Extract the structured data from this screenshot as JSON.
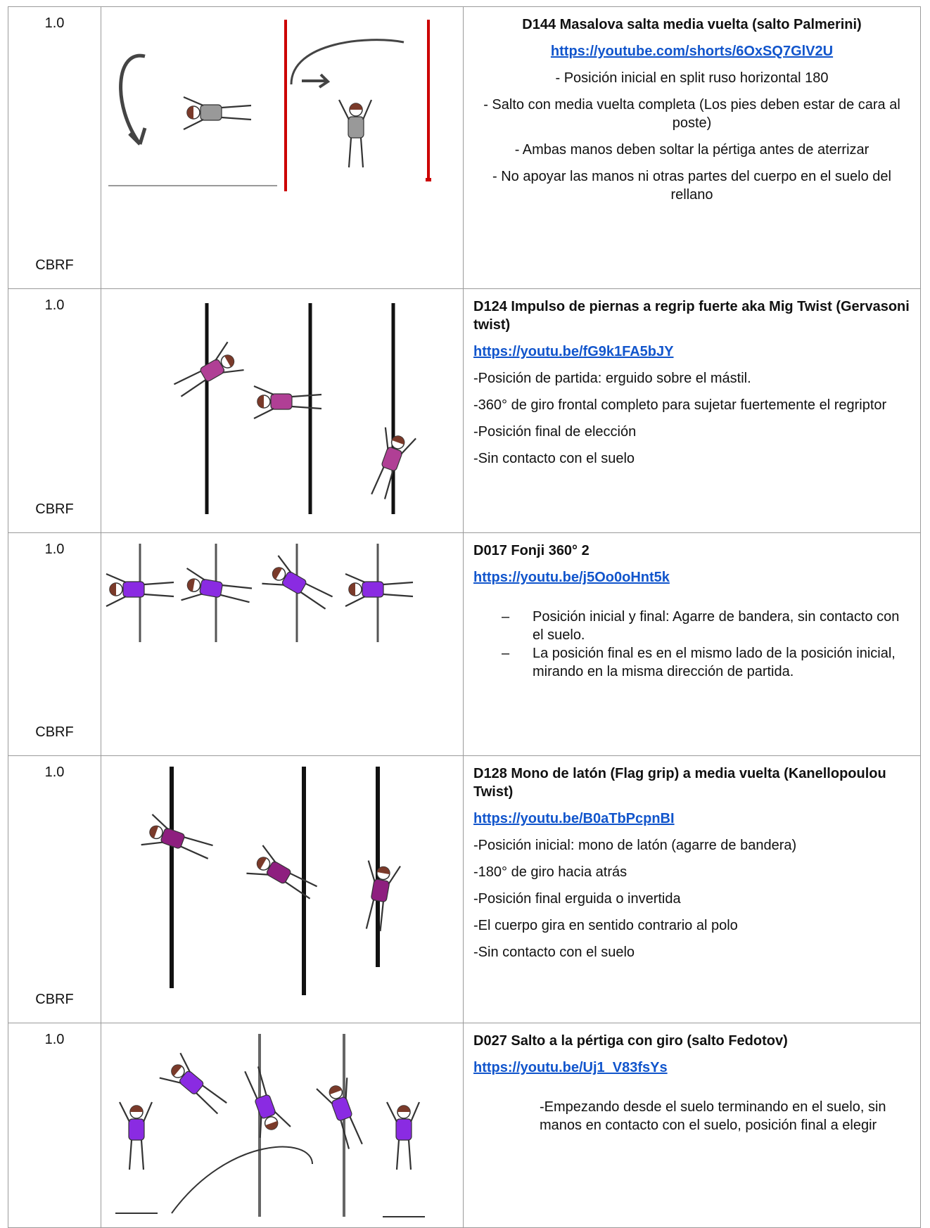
{
  "table": {
    "rows": [
      {
        "score": "1.0",
        "org": "CBRF",
        "title": "D144 Masalova salta media vuelta (salto Palmerini)",
        "link": "https://youtube.com/shorts/6OxSQ7GlV2U",
        "items": [
          "- Posición inicial en split ruso horizontal 180",
          "- Salto con media vuelta completa (Los pies deben estar de cara al poste)",
          "- Ambas manos deben soltar la pértiga antes de aterrizar",
          "- No apoyar las manos ni otras partes del cuerpo en el suelo del rellano"
        ]
      },
      {
        "score": "1.0",
        "org": "CBRF",
        "title": "D124 Impulso de piernas a regrip fuerte aka Mig Twist (Gervasoni twist)",
        "link": "https://youtu.be/fG9k1FA5bJY",
        "items": [
          "-Posición de partida: erguido sobre el mástil.",
          "-360° de giro frontal completo para sujetar fuertemente el regriptor",
          "-Posición final de elección",
          "-Sin contacto con el suelo"
        ]
      },
      {
        "score": "1.0",
        "org": "CBRF",
        "title": "D017 Fonji 360° 2",
        "link": "https://youtu.be/j5Oo0oHnt5k",
        "bullet": "–",
        "items": [
          "Posición inicial y final: Agarre de bandera, sin contacto con el suelo.",
          "La posición final es en el mismo lado de la posición inicial, mirando en la misma dirección de partida."
        ]
      },
      {
        "score": "1.0",
        "org": "CBRF",
        "title": "D128 Mono de latón (Flag grip) a media vuelta (Kanellopoulou Twist)",
        "link": "https://youtu.be/B0aTbPcpnBI",
        "items": [
          "-Posición inicial: mono de latón (agarre de bandera)",
          "-180° de giro hacia atrás",
          "-Posición final erguida o invertida",
          "-El cuerpo gira en sentido contrario al polo",
          "-Sin contacto con el suelo"
        ]
      },
      {
        "score": "1.0",
        "title": "D027 Salto a la pértiga con giro (salto Fedotov)",
        "link": "https://youtu.be/Uj1_V83fsYs",
        "items": [
          "-Empezando desde el suelo terminando en el suelo, sin manos en contacto con el suelo, posición final a elegir"
        ]
      }
    ]
  }
}
